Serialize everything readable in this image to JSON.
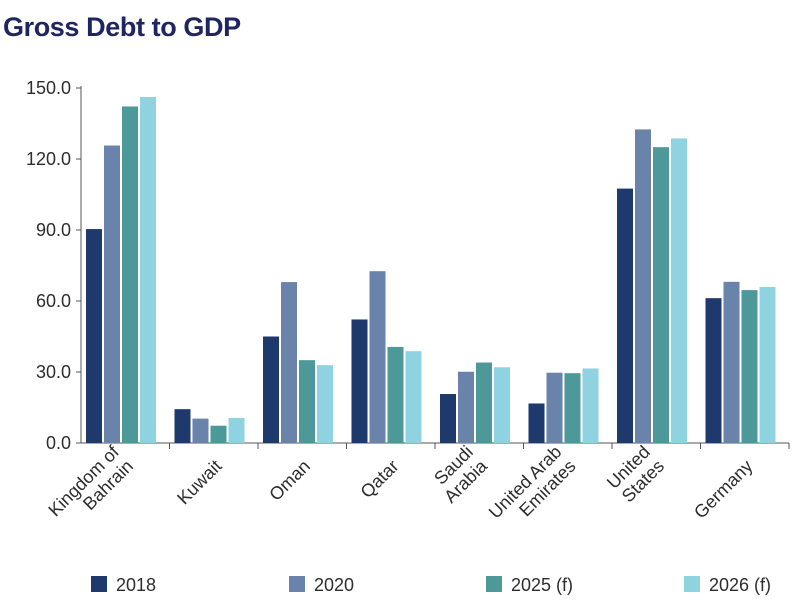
{
  "chart_data": {
    "type": "bar",
    "title": "Gross Debt to GDP",
    "xlabel": "",
    "ylabel": "",
    "ylim": [
      0,
      150
    ],
    "yticks": [
      "0.0",
      "30.0",
      "60.0",
      "90.0",
      "120.0",
      "150.0"
    ],
    "grid": false,
    "legend_position": "bottom",
    "categories": [
      [
        "Kingdom of",
        "Bahrain"
      ],
      [
        "Kuwait"
      ],
      [
        "Oman"
      ],
      [
        "Qatar"
      ],
      [
        "Saudi",
        "Arabia"
      ],
      [
        "United Arab",
        "Emirates"
      ],
      [
        "United",
        "States"
      ],
      [
        "Germany"
      ]
    ],
    "series": [
      {
        "name": "2018",
        "color": "#1e3a6c",
        "values": [
          90.4,
          14.3,
          45.0,
          52.2,
          20.7,
          16.7,
          107.5,
          61.2
        ]
      },
      {
        "name": "2020",
        "color": "#6a83aa",
        "values": [
          125.7,
          10.3,
          68.0,
          72.6,
          30.1,
          29.7,
          132.5,
          68.1
        ]
      },
      {
        "name": "2025 (f)",
        "color": "#4d9898",
        "values": [
          142.2,
          7.3,
          35.0,
          40.6,
          34.0,
          29.5,
          125.0,
          64.6
        ]
      },
      {
        "name": "2026 (f)",
        "color": "#8fd3e1",
        "values": [
          146.2,
          10.6,
          32.9,
          38.8,
          32.0,
          31.5,
          128.7,
          65.9
        ]
      }
    ]
  }
}
